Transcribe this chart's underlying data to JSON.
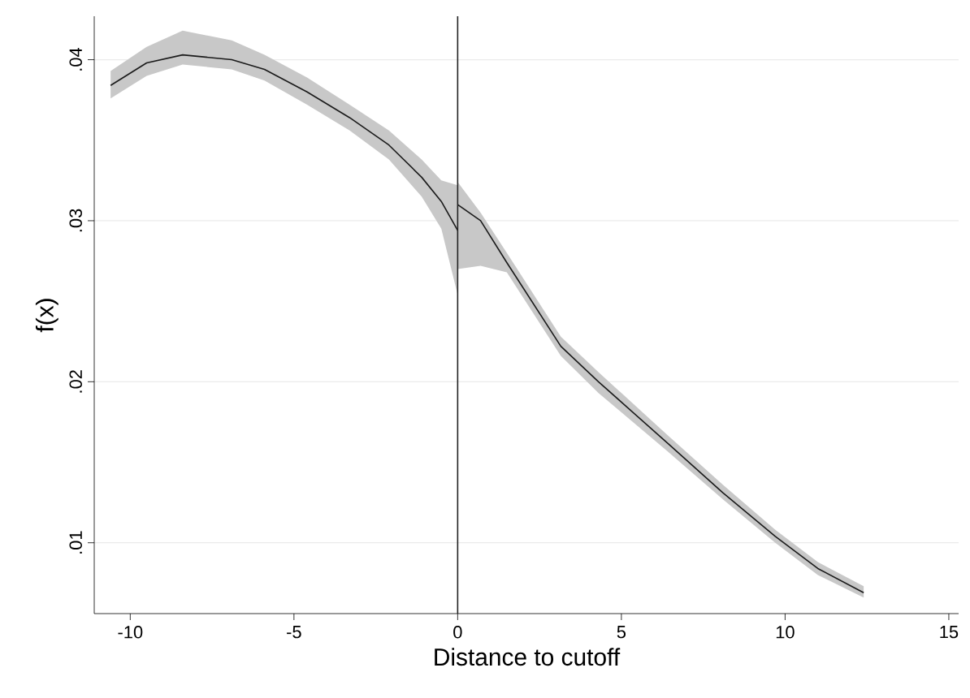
{
  "chart_data": {
    "type": "line",
    "xlabel": "Distance to cutoff",
    "ylabel": "f(x)",
    "xlim": [
      -11.1,
      15.3
    ],
    "ylim": [
      0.0056,
      0.0427
    ],
    "xticks": [
      -10,
      -5,
      0,
      5,
      10,
      15
    ],
    "yticks": [
      {
        "value": 0.01,
        "label": ".01"
      },
      {
        "value": 0.02,
        "label": ".02"
      },
      {
        "value": 0.03,
        "label": ".03"
      },
      {
        "value": 0.04,
        "label": ".04"
      }
    ],
    "grid": "y",
    "marker": "none",
    "line_style": "solid",
    "ref_lines": [
      {
        "axis": "x",
        "value": 0,
        "color": "#222222"
      }
    ],
    "series": [
      {
        "color": "#1a1a1a",
        "x": [
          -10.6,
          -9.5,
          -8.4,
          -6.9,
          -5.9,
          -4.6,
          -3.3,
          -2.1,
          -1.1,
          -0.5,
          0
        ],
        "values": [
          0.0384,
          0.0398,
          0.0403,
          0.04,
          0.0394,
          0.038,
          0.0364,
          0.0347,
          0.0327,
          0.0312,
          0.0294
        ],
        "lower": [
          0.0376,
          0.039,
          0.0397,
          0.0394,
          0.0387,
          0.0372,
          0.0356,
          0.0338,
          0.0315,
          0.0295,
          0.0254
        ],
        "upper": [
          0.0393,
          0.0408,
          0.0418,
          0.0412,
          0.0403,
          0.0389,
          0.0372,
          0.0356,
          0.0338,
          0.0325,
          0.0322
        ]
      },
      {
        "color": "#1a1a1a",
        "x": [
          0,
          0.7,
          1.5,
          3.15,
          4.3,
          6.4,
          8.1,
          9.7,
          11,
          12.4
        ],
        "values": [
          0.031,
          0.03,
          0.0274,
          0.0222,
          0.02,
          0.0162,
          0.0131,
          0.0104,
          0.0084,
          0.0069
        ],
        "lower": [
          0.027,
          0.0272,
          0.0268,
          0.0216,
          0.0193,
          0.0157,
          0.0127,
          0.01,
          0.008,
          0.0066
        ],
        "upper": [
          0.0324,
          0.0305,
          0.028,
          0.0228,
          0.0206,
          0.0167,
          0.0136,
          0.0108,
          0.0088,
          0.0073
        ]
      }
    ]
  }
}
